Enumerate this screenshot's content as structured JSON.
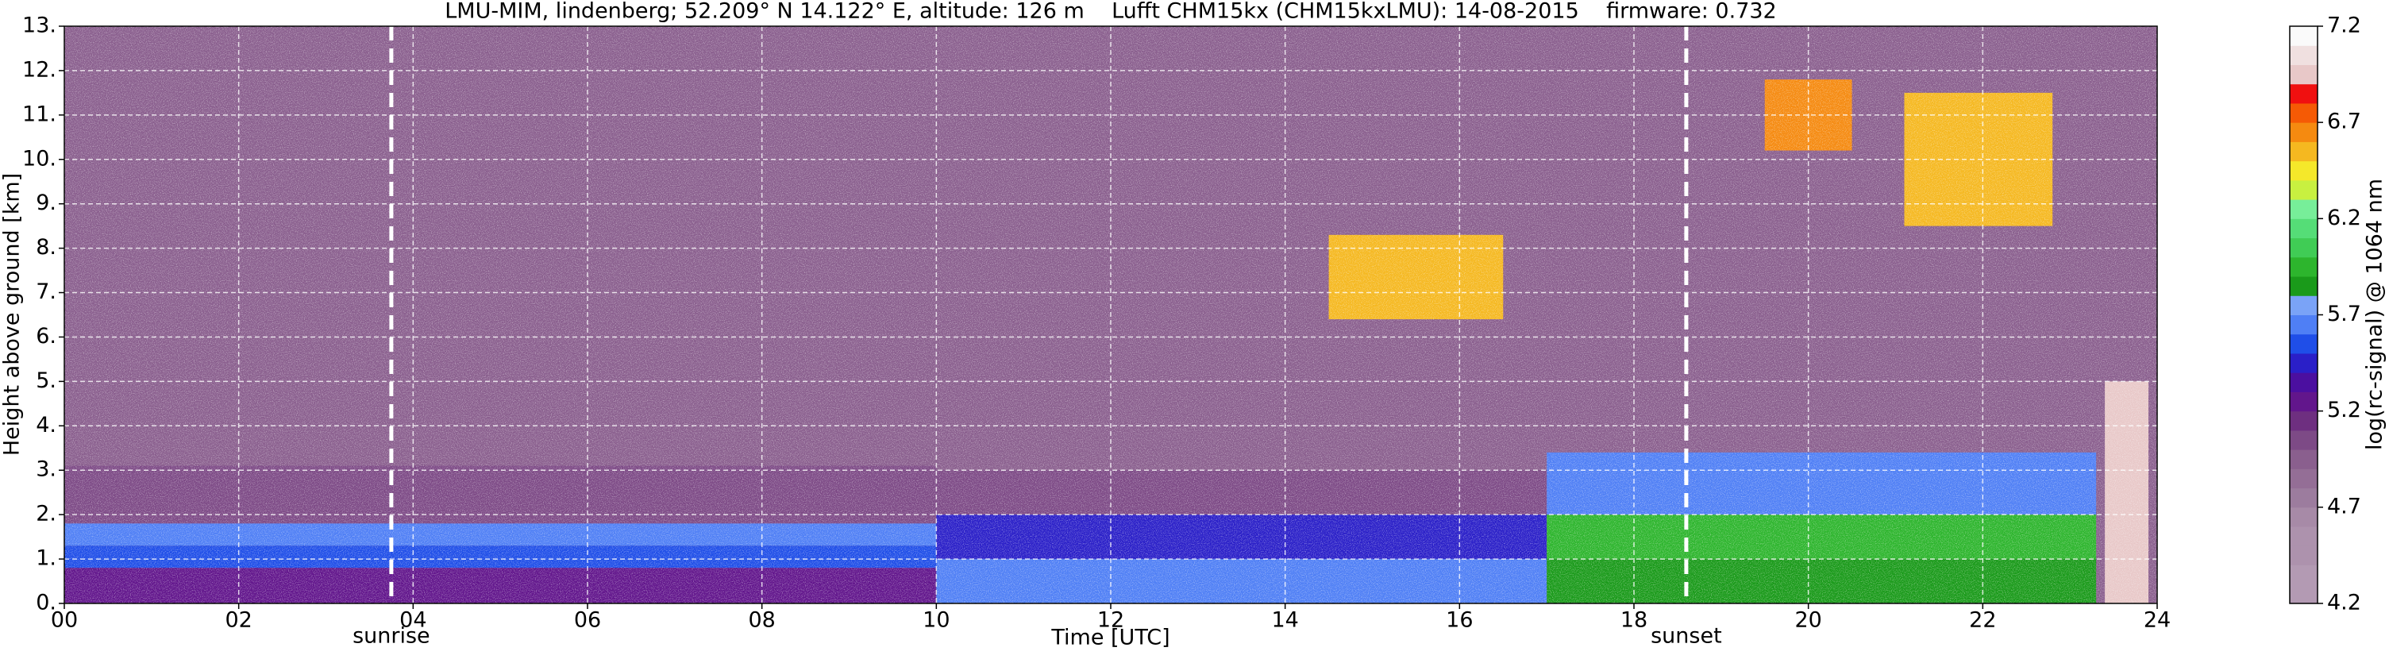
{
  "chart_data": {
    "type": "heatmap",
    "title": "LMU-MIM, lindenberg; 52.209° N 14.122° E, altitude: 126 m    Lufft CHM15kx (CHM15kxLMU): 14-08-2015    firmware: 0.732",
    "xlabel": "Time [UTC]",
    "ylabel": "Height above ground [km]",
    "xlim": [
      0,
      24
    ],
    "xticks": [
      {
        "value": 0,
        "label": "00"
      },
      {
        "value": 2,
        "label": "02"
      },
      {
        "value": 4,
        "label": "04"
      },
      {
        "value": 6,
        "label": "06"
      },
      {
        "value": 8,
        "label": "08"
      },
      10,
      12,
      14,
      16,
      18,
      20,
      22,
      24
    ],
    "ylim": [
      0,
      13
    ],
    "yticks": [
      {
        "value": 0,
        "label": "0."
      },
      {
        "value": 1,
        "label": "1."
      },
      {
        "value": 2,
        "label": "2."
      },
      {
        "value": 3,
        "label": "3."
      },
      {
        "value": 4,
        "label": "4."
      },
      {
        "value": 5,
        "label": "5."
      },
      {
        "value": 6,
        "label": "6."
      },
      {
        "value": 7,
        "label": "7."
      },
      {
        "value": 8,
        "label": "8."
      },
      {
        "value": 9,
        "label": "9."
      },
      {
        "value": 10,
        "label": "10."
      },
      {
        "value": 11,
        "label": "11."
      },
      {
        "value": 12,
        "label": "12."
      },
      {
        "value": 13,
        "label": "13."
      }
    ],
    "grid": true,
    "colorbar": {
      "label": "log(rc-signal) @ 1064 nm",
      "clim": [
        4.2,
        7.2
      ],
      "ticks": [
        4.2,
        4.7,
        5.2,
        5.7,
        6.2,
        6.7,
        7.2
      ],
      "colors": [
        "#b39ab3",
        "#b39ab3",
        "#ad92ad",
        "#ad92ad",
        "#a78aa7",
        "#9c7c9e",
        "#946e96",
        "#8a5f8e",
        "#7d4a86",
        "#6e2f80",
        "#62168c",
        "#4b0fa0",
        "#2a1fc8",
        "#1f4ee8",
        "#4f7ff5",
        "#7aa3f7",
        "#1a9a1a",
        "#2db52d",
        "#40cc55",
        "#55dd77",
        "#77ee99",
        "#c8f040",
        "#f5e82a",
        "#f5b820",
        "#f58a10",
        "#f55a05",
        "#f01010",
        "#e8c8c8",
        "#f0e0e0",
        "#fafafa"
      ]
    },
    "regions": [
      {
        "x": [
          0,
          24
        ],
        "y": [
          0,
          13
        ],
        "value": 4.95
      },
      {
        "x": [
          0,
          10
        ],
        "y": [
          1.8,
          3.1
        ],
        "value": 5.05
      },
      {
        "x": [
          0,
          10
        ],
        "y": [
          1.3,
          1.8
        ],
        "value": 5.65
      },
      {
        "x": [
          0,
          10
        ],
        "y": [
          0.8,
          1.3
        ],
        "value": 5.55
      },
      {
        "x": [
          0,
          10
        ],
        "y": [
          0,
          0.8
        ],
        "value": 5.25
      },
      {
        "x": [
          10,
          17
        ],
        "y": [
          2,
          3
        ],
        "value": 5.05
      },
      {
        "x": [
          10,
          17
        ],
        "y": [
          1,
          2
        ],
        "value": 5.45
      },
      {
        "x": [
          10,
          17
        ],
        "y": [
          0,
          1
        ],
        "value": 5.65
      },
      {
        "x": [
          17,
          23.3
        ],
        "y": [
          2,
          3.4
        ],
        "value": 5.65
      },
      {
        "x": [
          17,
          23.3
        ],
        "y": [
          1,
          2
        ],
        "value": 5.95
      },
      {
        "x": [
          17,
          23.3
        ],
        "y": [
          0,
          1
        ],
        "value": 5.85
      },
      {
        "x": [
          14.5,
          16.5
        ],
        "y": [
          6.4,
          8.3
        ],
        "value": 6.55
      },
      {
        "x": [
          19.5,
          20.5
        ],
        "y": [
          10.2,
          11.8
        ],
        "value": 6.65
      },
      {
        "x": [
          21.1,
          22.8
        ],
        "y": [
          8.5,
          11.5
        ],
        "value": 6.6
      },
      {
        "x": [
          23.4,
          23.9
        ],
        "y": [
          0,
          5
        ],
        "value": 6.95
      }
    ],
    "annotations": [
      {
        "x": 3.75,
        "label": "sunrise"
      },
      {
        "x": 18.6,
        "label": "sunset"
      }
    ]
  }
}
